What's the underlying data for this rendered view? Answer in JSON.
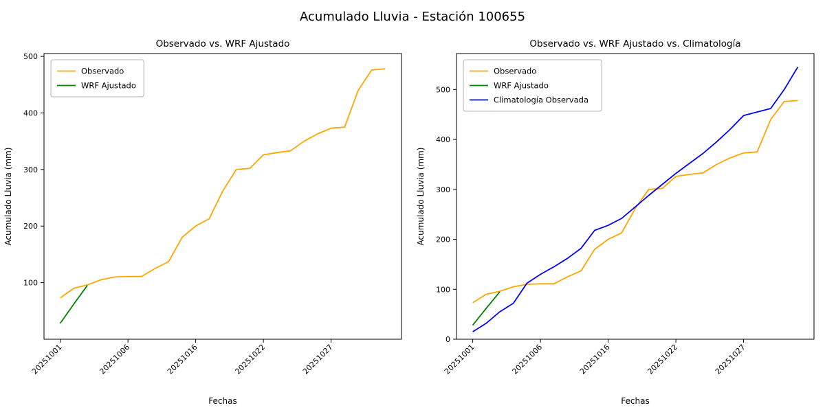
{
  "figure": {
    "suptitle": "Acumulado Lluvia - Estación 100655"
  },
  "chart_data": [
    {
      "type": "line",
      "title": "Observado vs. WRF Ajustado",
      "xlabel": "Fechas",
      "ylabel": "Acumulado Lluvia (mm)",
      "x_tick_indices": [
        0,
        5,
        10,
        15,
        20
      ],
      "x_tick_labels": [
        "20251001",
        "20251006",
        "20251016",
        "20251022",
        "20251027"
      ],
      "ylim": [
        0,
        505
      ],
      "yticks": [
        100,
        200,
        300,
        400,
        500
      ],
      "grid": false,
      "legend_loc": "upper left",
      "series": [
        {
          "name": "Observado",
          "color": "#ffa500",
          "values": [
            73,
            90,
            96,
            105,
            110,
            111,
            111,
            125,
            137,
            180,
            200,
            213,
            262,
            300,
            302,
            326,
            330,
            333,
            350,
            363,
            373,
            375,
            440,
            476,
            478
          ]
        },
        {
          "name": "WRF Ajustado",
          "color": "#008000",
          "values": [
            28,
            62,
            95
          ]
        }
      ]
    },
    {
      "type": "line",
      "title": "Observado vs. WRF Ajustado vs. Climatología",
      "xlabel": "Fechas",
      "ylabel": "Acumulado Lluvia (mm)",
      "x_tick_indices": [
        0,
        5,
        10,
        15,
        20
      ],
      "x_tick_labels": [
        "20251001",
        "20251006",
        "20251016",
        "20251022",
        "20251027"
      ],
      "ylim": [
        0,
        572
      ],
      "yticks": [
        0,
        100,
        200,
        300,
        400,
        500
      ],
      "grid": false,
      "legend_loc": "upper left",
      "series": [
        {
          "name": "Observado",
          "color": "#ffa500",
          "values": [
            73,
            90,
            96,
            105,
            110,
            111,
            111,
            125,
            137,
            180,
            200,
            213,
            262,
            300,
            302,
            326,
            330,
            333,
            350,
            363,
            373,
            375,
            440,
            476,
            478
          ]
        },
        {
          "name": "WRF Ajustado",
          "color": "#008000",
          "values": [
            28,
            62,
            95
          ]
        },
        {
          "name": "Climatología Observada",
          "color": "#0000ff",
          "values": [
            15,
            32,
            55,
            72,
            112,
            130,
            145,
            162,
            182,
            218,
            228,
            242,
            265,
            288,
            310,
            332,
            352,
            372,
            395,
            420,
            448,
            455,
            462,
            500,
            545
          ]
        }
      ]
    }
  ]
}
